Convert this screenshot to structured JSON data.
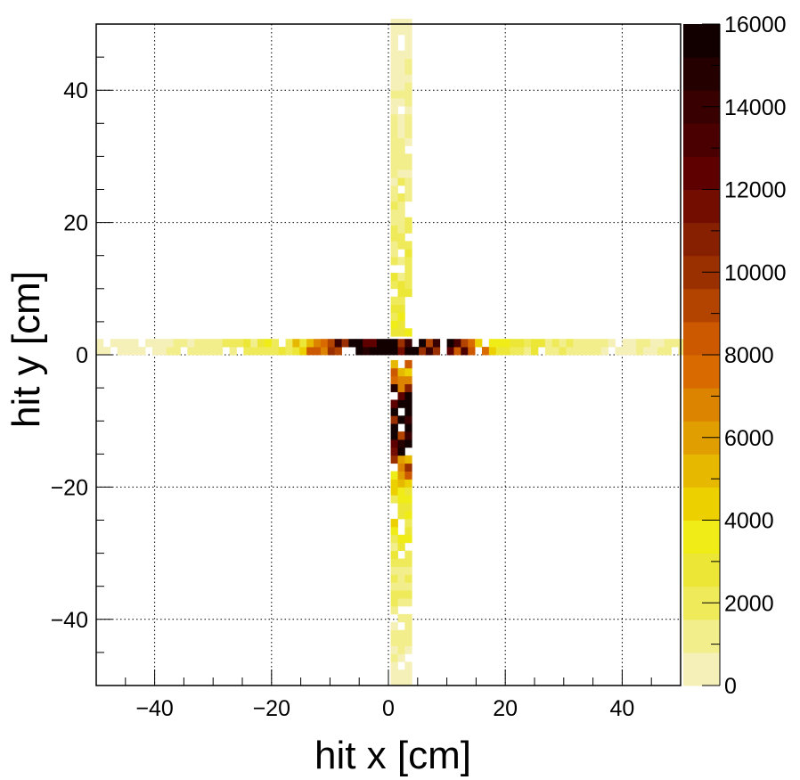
{
  "chart_data": {
    "type": "heatmap",
    "title": "",
    "xlabel": "hit x [cm]",
    "ylabel": "hit y [cm]",
    "xlim": [
      -50,
      50
    ],
    "ylim": [
      -50,
      50
    ],
    "zlim": [
      0,
      16000
    ],
    "bin_width_cm": 1.2,
    "grid": true,
    "x_ticks": [
      -40,
      -20,
      0,
      20,
      40
    ],
    "y_ticks": [
      -40,
      -20,
      0,
      20,
      40
    ],
    "z_ticks": [
      0,
      2000,
      4000,
      6000,
      8000,
      10000,
      12000,
      14000,
      16000
    ],
    "x_tick_labels": [
      "−40",
      "−20",
      "0",
      "20",
      "40"
    ],
    "y_tick_labels": [
      "−40",
      "−20",
      "0",
      "20",
      "40"
    ],
    "z_tick_labels": [
      "0",
      "2000",
      "4000",
      "6000",
      "8000",
      "10000",
      "12000",
      "14000",
      "16000"
    ],
    "colorbar_levels": 20,
    "colorbar_palette": [
      "#f5f0b8",
      "#f3ee8c",
      "#efea5a",
      "#ece637",
      "#f0ec18",
      "#ecd000",
      "#e7b800",
      "#e09e00",
      "#dc8400",
      "#d86a00",
      "#cc5800",
      "#b24400",
      "#9a3000",
      "#862000",
      "#720d00",
      "#5e0000",
      "#4a0000",
      "#380000",
      "#240000",
      "#120000"
    ],
    "horizontal_band": {
      "y_range": [
        0.0,
        2.4
      ],
      "description_values_by_x": [
        {
          "x": -48,
          "value": 400
        },
        {
          "x": -40,
          "value": 600
        },
        {
          "x": -30,
          "value": 1000
        },
        {
          "x": -20,
          "value": 2500
        },
        {
          "x": -15,
          "value": 4000
        },
        {
          "x": -12,
          "value": 7000
        },
        {
          "x": -10,
          "value": 10000
        },
        {
          "x": -7,
          "value": 16000
        },
        {
          "x": -3,
          "value": 15500
        },
        {
          "x": 2,
          "value": 16000
        },
        {
          "x": 5,
          "value": 12000
        },
        {
          "x": 8,
          "value": 15000
        },
        {
          "x": 11,
          "value": 15000
        },
        {
          "x": 14,
          "value": 8000
        },
        {
          "x": 20,
          "value": 3000
        },
        {
          "x": 30,
          "value": 1500
        },
        {
          "x": 40,
          "value": 700
        },
        {
          "x": 49,
          "value": 1200
        }
      ]
    },
    "vertical_band": {
      "x_range": [
        0.4,
        4.0
      ],
      "description_values_by_y": [
        {
          "y": 49,
          "value": 500
        },
        {
          "y": 40,
          "value": 800
        },
        {
          "y": 30,
          "value": 1000
        },
        {
          "y": 20,
          "value": 1500
        },
        {
          "y": 10,
          "value": 2000
        },
        {
          "y": 5,
          "value": 3000
        },
        {
          "y": -3,
          "value": 7000
        },
        {
          "y": -5,
          "value": 12000
        },
        {
          "y": -8,
          "value": 15000
        },
        {
          "y": -10,
          "value": 13000
        },
        {
          "y": -13,
          "value": 14000
        },
        {
          "y": -16,
          "value": 9000
        },
        {
          "y": -20,
          "value": 4000
        },
        {
          "y": -30,
          "value": 2000
        },
        {
          "y": -40,
          "value": 1000
        },
        {
          "y": -49,
          "value": 600
        }
      ]
    }
  }
}
